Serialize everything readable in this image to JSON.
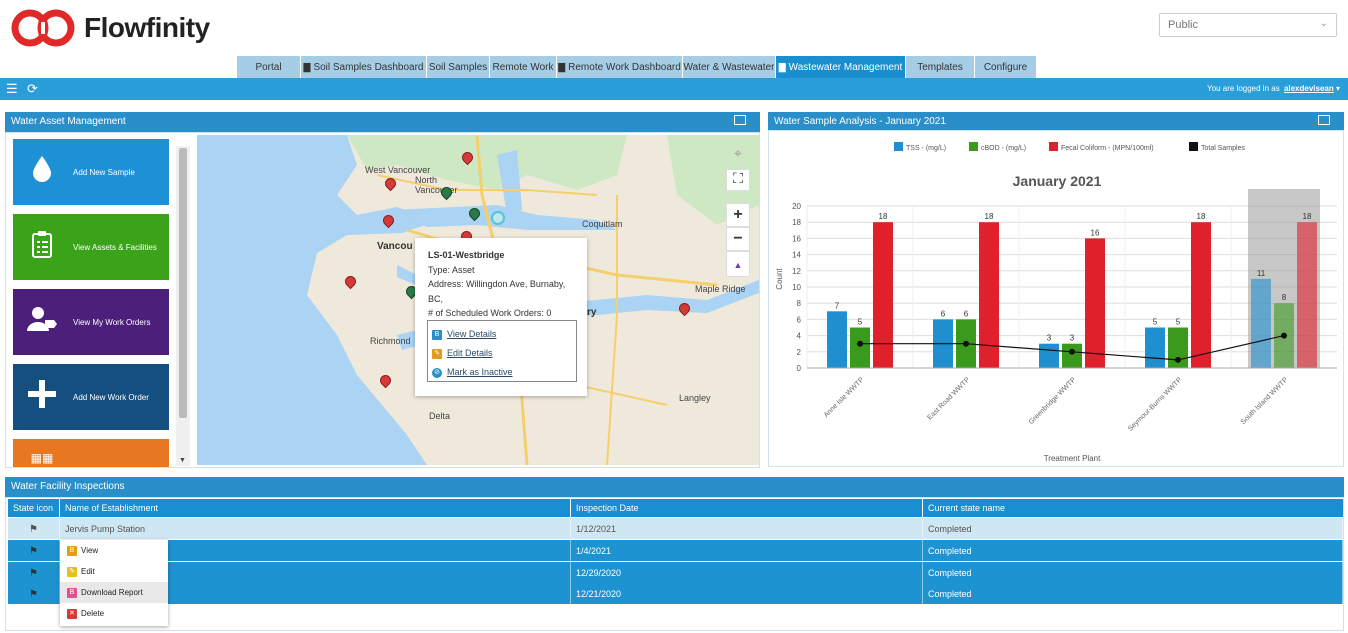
{
  "brand": {
    "name": "Flowfinity",
    "accent": "#e02a2a"
  },
  "public_select": {
    "value": "Public"
  },
  "nav": {
    "tabs": [
      {
        "label": "Portal",
        "icon": ""
      },
      {
        "label": "Soil Samples Dashboard",
        "icon": "chart-icon"
      },
      {
        "label": "Soil Samples",
        "icon": ""
      },
      {
        "label": "Remote Work",
        "icon": ""
      },
      {
        "label": "Remote Work Dashboard",
        "icon": "chart-icon"
      },
      {
        "label": "Water & Wastewater",
        "icon": ""
      },
      {
        "label": "Wastewater Management",
        "icon": "chart-icon",
        "active": true
      },
      {
        "label": "Templates",
        "icon": ""
      },
      {
        "label": "Configure",
        "icon": ""
      }
    ]
  },
  "toolbar": {
    "logged_in_text": "You are logged in as",
    "username": "alexdevisean"
  },
  "asset_panel": {
    "title": "Water Asset Management",
    "tiles": [
      {
        "label": "Add New Sample",
        "color": "#1e90d6",
        "icon": "water-drop-icon"
      },
      {
        "label": "View Assets & Facilities",
        "color": "#3aa319",
        "icon": "clipboard-icon"
      },
      {
        "label": "View My Work Orders",
        "color": "#4b1f7a",
        "icon": "user-tag-icon"
      },
      {
        "label": "Add New Work Order",
        "color": "#154f80",
        "icon": "plus-icon"
      }
    ]
  },
  "map": {
    "labels": [
      "West Vancouver",
      "North Vancouver",
      "Coquitlam",
      "Vancou",
      "Maple Ridge",
      "Richmond",
      "Delta",
      "Langley",
      "ry"
    ],
    "popup": {
      "title": "LS-01-Westbridge",
      "type_line": "Type:  Asset",
      "address_line": "Address:  Willingdon Ave, Burnaby, BC,",
      "orders_line": "# of Scheduled Work Orders:  0",
      "actions": [
        "View Details",
        "Edit Details",
        "Mark as Inactive"
      ]
    }
  },
  "chart_panel": {
    "title": "Water Sample Analysis - January 2021"
  },
  "chart_data": {
    "type": "bar",
    "title": "January 2021",
    "xlabel": "Treatment Plant",
    "ylabel": "Count",
    "ylim": [
      0,
      20
    ],
    "yticks": [
      0,
      2,
      4,
      6,
      8,
      10,
      12,
      14,
      16,
      18,
      20
    ],
    "categories": [
      "Anne Isle WWTP",
      "East Road WWTP",
      "Greenbridge WWTP",
      "Seymour-Burns WWTP",
      "South Island WWTP"
    ],
    "series": [
      {
        "name": "TSS - (mg/L)",
        "values": [
          7,
          6,
          3,
          5,
          11
        ],
        "color": "#1f8fd0"
      },
      {
        "name": "cBOD - (mg/L)",
        "values": [
          5,
          6,
          3,
          5,
          8
        ],
        "color": "#3a9a1c"
      },
      {
        "name": "Fecal Coliform - (MPN/100ml)",
        "values": [
          18,
          18,
          16,
          18,
          18
        ],
        "color": "#e0202a"
      },
      {
        "name": "Total Samples",
        "values": [
          3,
          3,
          2,
          1,
          4
        ],
        "color": "#111111",
        "kind": "line"
      }
    ],
    "highlighted_category": "South Island WWTP",
    "legend_position": "top",
    "grid": true
  },
  "inspections": {
    "title": "Water Facility Inspections",
    "columns": [
      "State icon",
      "Name of Establishment",
      "Inspection Date",
      "Current state name"
    ],
    "rows": [
      {
        "name": "Jervis Pump Station",
        "date": "1/12/2021",
        "state": "Completed"
      },
      {
        "name": "",
        "date": "1/4/2021",
        "state": "Completed"
      },
      {
        "name": "",
        "date": "12/29/2020",
        "state": "Completed"
      },
      {
        "name": "",
        "date": "12/21/2020",
        "state": "Completed"
      }
    ],
    "context_menu": [
      "View",
      "Edit",
      "Download Report",
      "Delete"
    ]
  }
}
